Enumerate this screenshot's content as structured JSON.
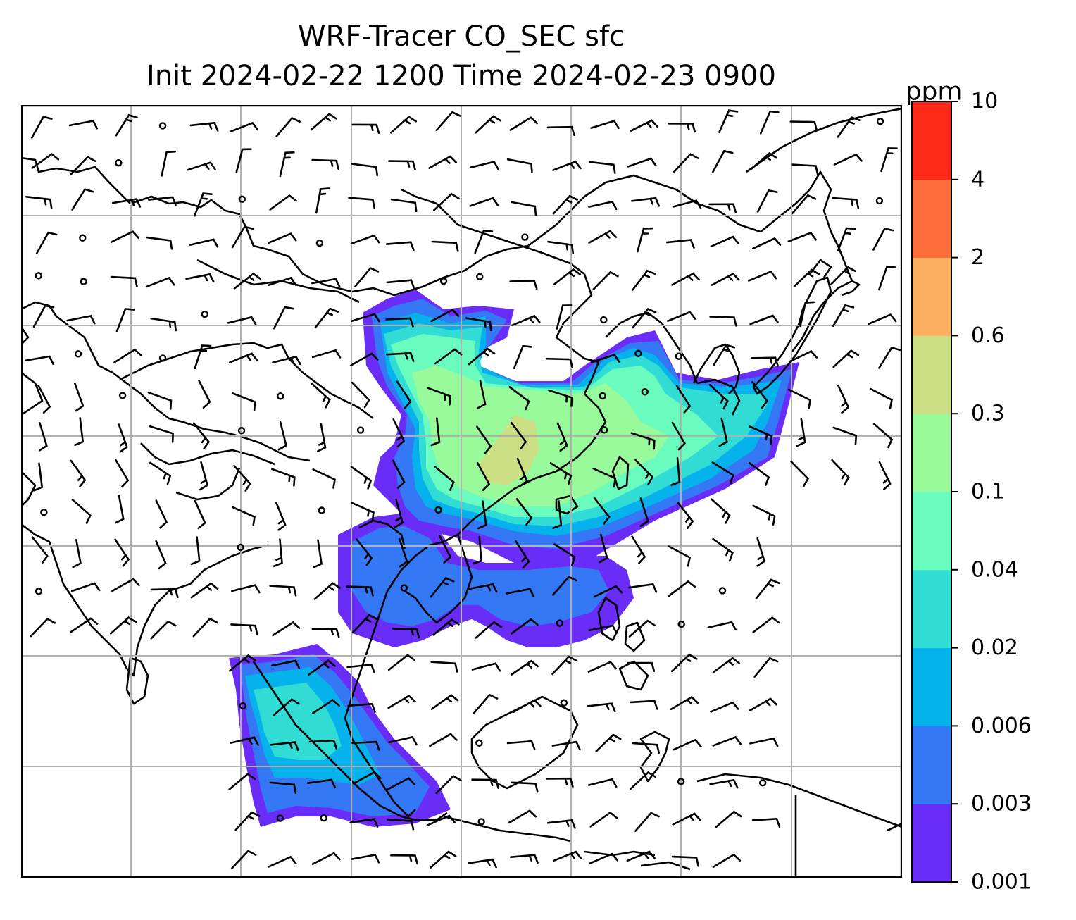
{
  "figure": {
    "title_line1": "WRF-Tracer CO_SEC sfc",
    "title_line2": "Init 2024-02-22 1200 Time 2024-02-23 0900"
  },
  "colorbar": {
    "unit": "ppm",
    "levels": [
      "0.001",
      "0.003",
      "0.006",
      "0.02",
      "0.04",
      "0.1",
      "0.3",
      "0.6",
      "2",
      "4",
      "10"
    ],
    "colors": [
      "#6a2cf7",
      "#3478f6",
      "#06b2ec",
      "#30dcd4",
      "#6afbbf",
      "#98fa9a",
      "#cddf85",
      "#fcaf60",
      "#fd6e3a",
      "#fe2a17"
    ]
  },
  "map": {
    "gridlines": true,
    "grid_color": "#b0b0b0",
    "coastline_color": "#000000",
    "wind_barbs": true
  }
}
